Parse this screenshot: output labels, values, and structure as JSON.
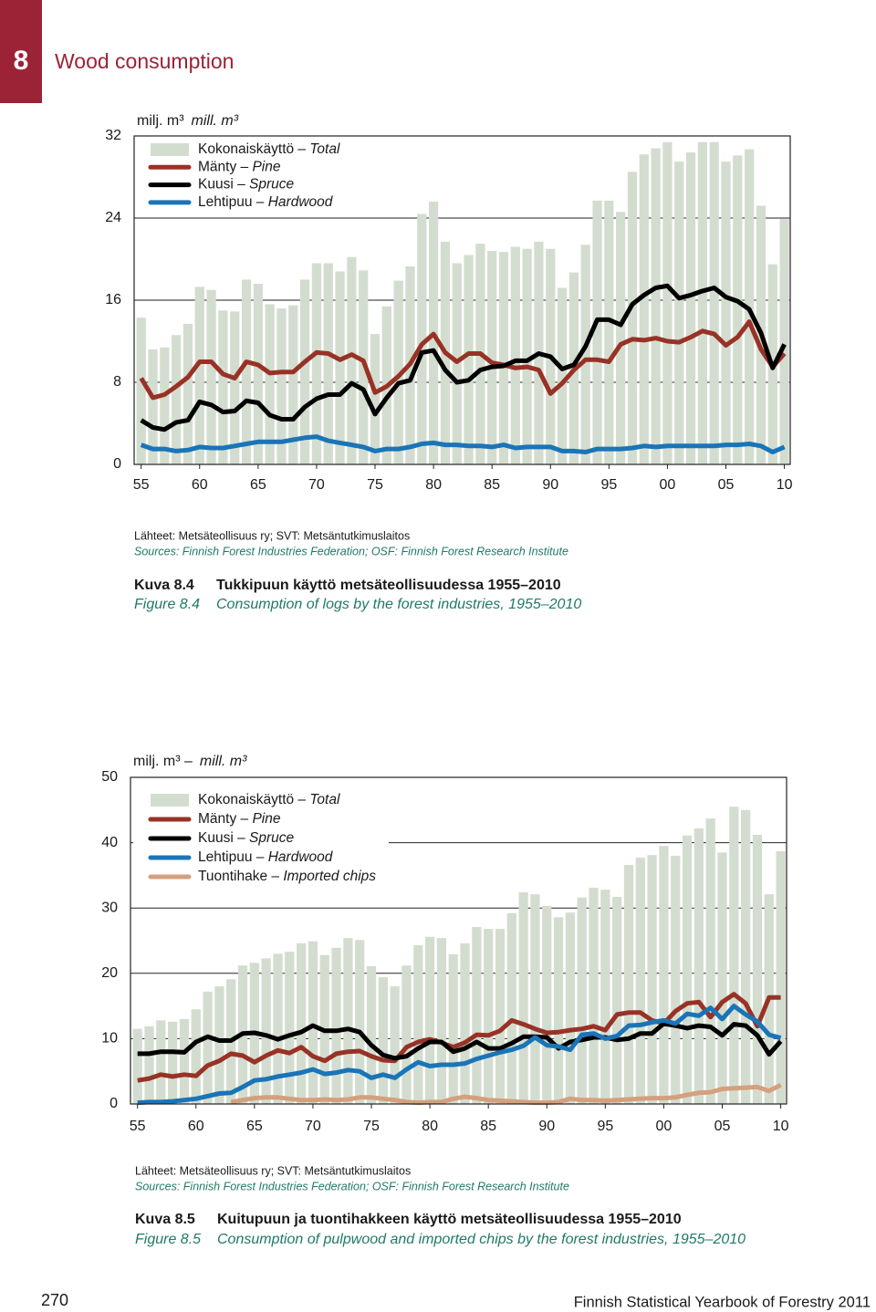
{
  "header": {
    "chapter": "8",
    "title": "Wood consumption"
  },
  "chart_data": [
    {
      "type": "combo",
      "y_label": "milj. m³",
      "y_label_en": "mill. m³",
      "x": [
        1955,
        1956,
        1957,
        1958,
        1959,
        1960,
        1961,
        1962,
        1963,
        1964,
        1965,
        1966,
        1967,
        1968,
        1969,
        1970,
        1971,
        1972,
        1973,
        1974,
        1975,
        1976,
        1977,
        1978,
        1979,
        1980,
        1981,
        1982,
        1983,
        1984,
        1985,
        1986,
        1987,
        1988,
        1989,
        1990,
        1991,
        1992,
        1993,
        1994,
        1995,
        1996,
        1997,
        1998,
        1999,
        2000,
        2001,
        2002,
        2003,
        2004,
        2005,
        2006,
        2007,
        2008,
        2009,
        2010
      ],
      "xlim": [
        1954.4,
        2010.5
      ],
      "xticks": [
        {
          "value": 1955,
          "label": "55"
        },
        {
          "value": 1960,
          "label": "60"
        },
        {
          "value": 1965,
          "label": "65"
        },
        {
          "value": 1970,
          "label": "70"
        },
        {
          "value": 1975,
          "label": "75"
        },
        {
          "value": 1980,
          "label": "80"
        },
        {
          "value": 1985,
          "label": "85"
        },
        {
          "value": 1990,
          "label": "90"
        },
        {
          "value": 1995,
          "label": "95"
        },
        {
          "value": 2000,
          "label": "00"
        },
        {
          "value": 2005,
          "label": "05"
        },
        {
          "value": 2010,
          "label": "10"
        }
      ],
      "ylim": [
        0,
        32
      ],
      "yticks": [
        0,
        8,
        16,
        24,
        32
      ],
      "grid": true,
      "series": [
        {
          "name": "Kokonaiskäyttö – Total",
          "mark": "bar",
          "color": "#d3ddcf",
          "values": [
            14.3,
            11.2,
            11.4,
            12.6,
            13.7,
            17.3,
            17.0,
            15.0,
            14.9,
            18.0,
            17.6,
            15.6,
            15.2,
            15.5,
            18.0,
            19.6,
            19.6,
            18.8,
            20.2,
            18.9,
            12.7,
            15.4,
            17.9,
            19.3,
            24.4,
            25.6,
            21.7,
            19.6,
            20.4,
            21.5,
            20.8,
            20.7,
            21.2,
            21.0,
            21.7,
            21.0,
            17.2,
            18.7,
            21.4,
            25.7,
            25.7,
            24.6,
            28.5,
            30.2,
            30.8,
            31.4,
            29.5,
            30.4,
            31.4,
            31.4,
            29.5,
            30.1,
            30.7,
            25.2,
            19.5,
            23.9
          ]
        },
        {
          "name": "Mänty – Pine",
          "mark": "line",
          "color": "#993226",
          "values": [
            8.4,
            6.5,
            6.8,
            7.6,
            8.5,
            10.0,
            10.0,
            8.8,
            8.4,
            10.0,
            9.7,
            8.9,
            9.0,
            9.0,
            10.0,
            10.9,
            10.8,
            10.2,
            10.7,
            10.1,
            7.0,
            7.6,
            8.6,
            9.8,
            11.7,
            12.7,
            10.9,
            10.0,
            10.8,
            10.8,
            9.9,
            9.7,
            9.4,
            9.5,
            9.2,
            6.9,
            7.9,
            9.2,
            10.2,
            10.2,
            10.0,
            11.7,
            12.2,
            12.1,
            12.3,
            12.0,
            11.9,
            12.4,
            13.0,
            12.7,
            11.6,
            12.4,
            13.9,
            11.2,
            9.5,
            10.8
          ]
        },
        {
          "name": "Kuusi – Spruce",
          "mark": "line",
          "color": "#000000",
          "values": [
            4.3,
            3.6,
            3.4,
            4.1,
            4.3,
            6.1,
            5.8,
            5.1,
            5.2,
            6.2,
            6.0,
            4.8,
            4.4,
            4.4,
            5.6,
            6.4,
            6.8,
            6.8,
            7.9,
            7.3,
            4.9,
            6.5,
            7.9,
            8.2,
            10.9,
            11.1,
            9.2,
            8.0,
            8.2,
            9.2,
            9.5,
            9.6,
            10.1,
            10.1,
            10.8,
            10.5,
            9.3,
            9.7,
            11.5,
            14.1,
            14.1,
            13.6,
            15.6,
            16.5,
            17.2,
            17.4,
            16.2,
            16.5,
            16.9,
            17.2,
            16.3,
            15.9,
            15.1,
            12.8,
            9.4,
            11.7
          ]
        },
        {
          "name": "Lehtipuu – Hardwood",
          "mark": "line",
          "color": "#1a74b8",
          "values": [
            1.9,
            1.5,
            1.5,
            1.3,
            1.4,
            1.7,
            1.6,
            1.6,
            1.8,
            2.0,
            2.2,
            2.2,
            2.2,
            2.4,
            2.6,
            2.7,
            2.3,
            2.1,
            1.9,
            1.7,
            1.3,
            1.5,
            1.5,
            1.7,
            2.0,
            2.1,
            1.9,
            1.9,
            1.8,
            1.8,
            1.7,
            1.9,
            1.6,
            1.7,
            1.7,
            1.7,
            1.3,
            1.3,
            1.2,
            1.5,
            1.5,
            1.5,
            1.6,
            1.8,
            1.7,
            1.8,
            1.8,
            1.8,
            1.8,
            1.8,
            1.9,
            1.9,
            2.0,
            1.8,
            1.2,
            1.7
          ]
        }
      ]
    },
    {
      "type": "combo",
      "y_label": "milj. m³ –",
      "y_label_en": "mill. m³",
      "x": [
        1955,
        1956,
        1957,
        1958,
        1959,
        1960,
        1961,
        1962,
        1963,
        1964,
        1965,
        1966,
        1967,
        1968,
        1969,
        1970,
        1971,
        1972,
        1973,
        1974,
        1975,
        1976,
        1977,
        1978,
        1979,
        1980,
        1981,
        1982,
        1983,
        1984,
        1985,
        1986,
        1987,
        1988,
        1989,
        1990,
        1991,
        1992,
        1993,
        1994,
        1995,
        1996,
        1997,
        1998,
        1999,
        2000,
        2001,
        2002,
        2003,
        2004,
        2005,
        2006,
        2007,
        2008,
        2009,
        2010
      ],
      "xlim": [
        1954.4,
        2010.5
      ],
      "xticks": [
        {
          "value": 1955,
          "label": "55"
        },
        {
          "value": 1960,
          "label": "60"
        },
        {
          "value": 1965,
          "label": "65"
        },
        {
          "value": 1970,
          "label": "70"
        },
        {
          "value": 1975,
          "label": "75"
        },
        {
          "value": 1980,
          "label": "80"
        },
        {
          "value": 1985,
          "label": "85"
        },
        {
          "value": 1990,
          "label": "90"
        },
        {
          "value": 1995,
          "label": "95"
        },
        {
          "value": 2000,
          "label": "00"
        },
        {
          "value": 2005,
          "label": "05"
        },
        {
          "value": 2010,
          "label": "10"
        }
      ],
      "ylim": [
        0,
        50
      ],
      "yticks": [
        0,
        10,
        20,
        30,
        40,
        50
      ],
      "grid": true,
      "series": [
        {
          "name": "Kokonaiskäyttö – Total",
          "mark": "bar",
          "color": "#d3ddcf",
          "values": [
            11.5,
            11.9,
            12.8,
            12.6,
            13.0,
            14.5,
            17.2,
            18.0,
            19.1,
            21.2,
            21.6,
            22.3,
            23.0,
            23.3,
            24.6,
            24.9,
            22.8,
            23.9,
            25.4,
            25.1,
            21.1,
            19.4,
            18.0,
            21.2,
            24.3,
            25.6,
            25.4,
            22.9,
            24.6,
            27.1,
            26.8,
            26.8,
            29.2,
            32.4,
            32.1,
            30.3,
            28.6,
            29.3,
            31.6,
            33.1,
            32.8,
            31.7,
            36.6,
            37.7,
            38.1,
            39.5,
            38.0,
            41.1,
            42.2,
            43.7,
            38.5,
            45.5,
            45.0,
            41.2,
            32.1,
            38.7
          ]
        },
        {
          "name": "Mänty – Pine",
          "mark": "line",
          "color": "#993226",
          "values": [
            3.6,
            3.9,
            4.5,
            4.2,
            4.5,
            4.3,
            5.9,
            6.6,
            7.7,
            7.4,
            6.4,
            7.4,
            8.2,
            7.8,
            8.7,
            7.3,
            6.6,
            7.7,
            8.0,
            8.1,
            7.3,
            6.7,
            6.6,
            8.7,
            9.5,
            9.9,
            9.4,
            8.7,
            9.4,
            10.6,
            10.5,
            11.2,
            12.8,
            12.2,
            11.5,
            10.9,
            11.0,
            11.3,
            11.5,
            11.9,
            11.3,
            13.7,
            14.0,
            14.0,
            12.8,
            12.3,
            14.2,
            15.4,
            15.6,
            13.3,
            15.6,
            16.8,
            15.4,
            11.9,
            16.3,
            16.3
          ]
        },
        {
          "name": "Kuusi – Spruce",
          "mark": "line",
          "color": "#000000",
          "values": [
            7.7,
            7.7,
            8.0,
            8.0,
            7.9,
            9.5,
            10.3,
            9.7,
            9.7,
            10.8,
            10.9,
            10.5,
            9.9,
            10.5,
            11.0,
            12.0,
            11.2,
            11.2,
            11.5,
            11.0,
            9.0,
            7.5,
            7.0,
            7.3,
            8.5,
            9.5,
            9.5,
            8.0,
            8.5,
            9.5,
            8.5,
            8.5,
            9.3,
            10.3,
            10.3,
            10.2,
            8.5,
            9.5,
            9.8,
            10.2,
            10.2,
            9.8,
            10.0,
            10.8,
            10.8,
            12.3,
            12.0,
            11.6,
            12.0,
            11.8,
            10.5,
            12.2,
            12.0,
            10.5,
            7.6,
            9.6
          ]
        },
        {
          "name": "Lehtipuu – Hardwood",
          "mark": "line",
          "color": "#1a74b8",
          "values": [
            0.2,
            0.3,
            0.3,
            0.4,
            0.6,
            0.8,
            1.2,
            1.6,
            1.7,
            2.6,
            3.6,
            3.8,
            4.2,
            4.5,
            4.8,
            5.3,
            4.6,
            4.8,
            5.2,
            5.0,
            4.0,
            4.5,
            4.0,
            5.3,
            6.4,
            5.8,
            6.0,
            6.0,
            6.2,
            6.9,
            7.4,
            7.9,
            8.3,
            8.9,
            10.2,
            9.0,
            8.8,
            8.3,
            10.6,
            10.8,
            10.0,
            10.4,
            12.0,
            12.1,
            12.5,
            12.8,
            12.3,
            13.8,
            13.5,
            14.7,
            13.0,
            15.0,
            13.7,
            12.6,
            10.6,
            10.1
          ]
        },
        {
          "name": "Tuontihake – Imported chips",
          "mark": "line",
          "color": "#d4a07e",
          "values": [
            null,
            null,
            null,
            null,
            null,
            null,
            null,
            null,
            0.3,
            0.6,
            0.9,
            1.0,
            1.0,
            0.8,
            0.6,
            0.6,
            0.7,
            0.6,
            0.7,
            1.0,
            1.0,
            0.8,
            0.6,
            0.3,
            0.2,
            0.3,
            0.3,
            0.8,
            1.1,
            0.9,
            0.6,
            0.5,
            0.4,
            0.3,
            0.2,
            0.2,
            0.3,
            0.8,
            0.6,
            0.6,
            0.5,
            0.6,
            0.7,
            0.8,
            0.9,
            0.9,
            1.0,
            1.4,
            1.7,
            1.8,
            2.3,
            2.4,
            2.5,
            2.6,
            2.0,
            2.9
          ]
        }
      ]
    }
  ],
  "figures": [
    {
      "sources_fi": "Lähteet: Metsäteollisuus ry; SVT: Metsäntutkimuslaitos",
      "sources_en": "Sources: Finnish Forest Industries Federation; OSF: Finnish Forest Research Institute",
      "label_fi": "Kuva 8.4",
      "title_fi": "Tukkipuun käyttö metsäteollisuudessa 1955–2010",
      "label_en": "Figure 8.4",
      "title_en": "Consumption of logs by the forest industries, 1955–2010"
    },
    {
      "sources_fi": "Lähteet: Metsäteollisuus ry; SVT: Metsäntutkimuslaitos",
      "sources_en": "Sources: Finnish Forest Industries Federation; OSF: Finnish Forest Research Institute",
      "label_fi": "Kuva 8.5",
      "title_fi": "Kuitupuun ja tuontihakkeen käyttö metsäteollisuudessa 1955–2010",
      "label_en": "Figure 8.5",
      "title_en": "Consumption of pulpwood and imported chips by the forest industries, 1955–2010"
    }
  ],
  "footer": {
    "page": "270",
    "publication": "Finnish Statistical Yearbook of Forestry 2011"
  }
}
